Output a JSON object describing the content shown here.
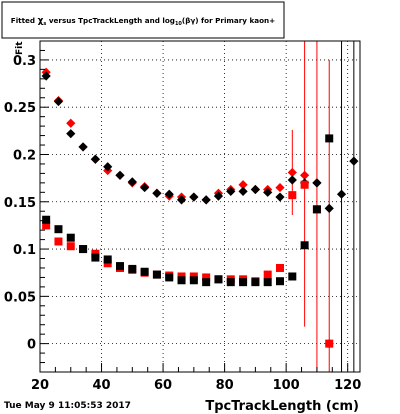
{
  "chart_data": {
    "type": "scatter",
    "title": "fitted χ_s versus TpcTrackLength and log10(βγ) for Primary kaon+",
    "title_main": "Fitted",
    "title_chi": "χ",
    "title_chi_sub": "s",
    "title_mid": "versus TpcTrackLength and log",
    "title_log_sub": "10",
    "title_end": "(βγ) for Primary kaon+",
    "xlabel": "TpcTrackLength (cm)",
    "ylabel_fragment": "Fit",
    "timestamp": "Tue May  9 11:05:53 2017",
    "xlim": [
      20,
      124
    ],
    "ylim": [
      -0.03,
      0.32
    ],
    "xticks": [
      20,
      40,
      60,
      80,
      100,
      120
    ],
    "yticks": [
      0,
      0.05,
      0.1,
      0.15,
      0.2,
      0.25,
      0.3
    ],
    "ytick_labels": [
      "0",
      "0.05",
      "0.1",
      "0.15",
      "0.2",
      "0.25",
      "0.3"
    ],
    "grid": true,
    "series": [
      {
        "marker": "diamond",
        "color": "#ff0000",
        "role": "mean",
        "x": [
          22,
          26,
          30,
          34,
          38,
          42,
          46,
          50,
          54,
          58,
          62,
          66,
          70,
          74,
          78,
          82,
          86,
          90,
          94,
          98,
          102,
          106,
          110,
          114
        ],
        "y": [
          0.287,
          0.257,
          0.233,
          0.208,
          0.195,
          0.183,
          0.178,
          0.17,
          0.166,
          0.159,
          0.156,
          0.155,
          0.155,
          0.152,
          0.159,
          0.163,
          0.168,
          0.163,
          0.163,
          0.165,
          0.181,
          0.178,
          0.17,
          0.0
        ],
        "err": [
          0,
          0,
          0,
          0,
          0,
          0,
          0,
          0,
          0,
          0,
          0,
          0,
          0,
          0,
          0,
          0,
          0,
          0,
          0,
          0,
          0.045,
          0.16,
          0.3,
          0.3
        ]
      },
      {
        "marker": "diamond",
        "color": "#000000",
        "role": "mean",
        "x": [
          22,
          26,
          30,
          34,
          38,
          42,
          46,
          50,
          54,
          58,
          62,
          66,
          70,
          74,
          78,
          82,
          86,
          90,
          94,
          98,
          102,
          106,
          110,
          114,
          118,
          122
        ],
        "y": [
          0.283,
          0.256,
          0.222,
          0.208,
          0.195,
          0.187,
          0.178,
          0.171,
          0.165,
          0.159,
          0.158,
          0.152,
          0.155,
          0.152,
          0.156,
          0.161,
          0.161,
          0.163,
          0.16,
          0.155,
          0.173,
          0.17,
          0.17,
          0.143,
          0.158,
          0.193
        ],
        "err": [
          0,
          0,
          0,
          0,
          0,
          0,
          0,
          0,
          0,
          0,
          0,
          0,
          0,
          0,
          0,
          0,
          0,
          0,
          0,
          0,
          0,
          0,
          0,
          0,
          0.3,
          0.3
        ]
      },
      {
        "marker": "square",
        "color": "#ff0000",
        "role": "sigma",
        "x": [
          22,
          26,
          30,
          34,
          38,
          42,
          46,
          50,
          54,
          58,
          62,
          66,
          70,
          74,
          78,
          82,
          86,
          90,
          94,
          98,
          102,
          106,
          110,
          114
        ],
        "y": [
          0.125,
          0.108,
          0.103,
          0.1,
          0.095,
          0.085,
          0.08,
          0.078,
          0.075,
          0.073,
          0.072,
          0.071,
          0.071,
          0.07,
          0.068,
          0.068,
          0.068,
          0.066,
          0.073,
          0.08,
          0.157,
          0.168,
          0.142,
          0.0
        ]
      },
      {
        "marker": "square",
        "color": "#000000",
        "role": "sigma",
        "x": [
          22,
          26,
          30,
          34,
          38,
          42,
          46,
          50,
          54,
          58,
          62,
          66,
          70,
          74,
          78,
          82,
          86,
          90,
          94,
          98,
          102,
          106,
          110,
          114
        ],
        "y": [
          0.131,
          0.121,
          0.112,
          0.1,
          0.091,
          0.089,
          0.082,
          0.079,
          0.076,
          0.073,
          0.07,
          0.067,
          0.067,
          0.065,
          0.068,
          0.065,
          0.065,
          0.065,
          0.065,
          0.066,
          0.071,
          0.104,
          0.142,
          0.217
        ]
      }
    ]
  }
}
